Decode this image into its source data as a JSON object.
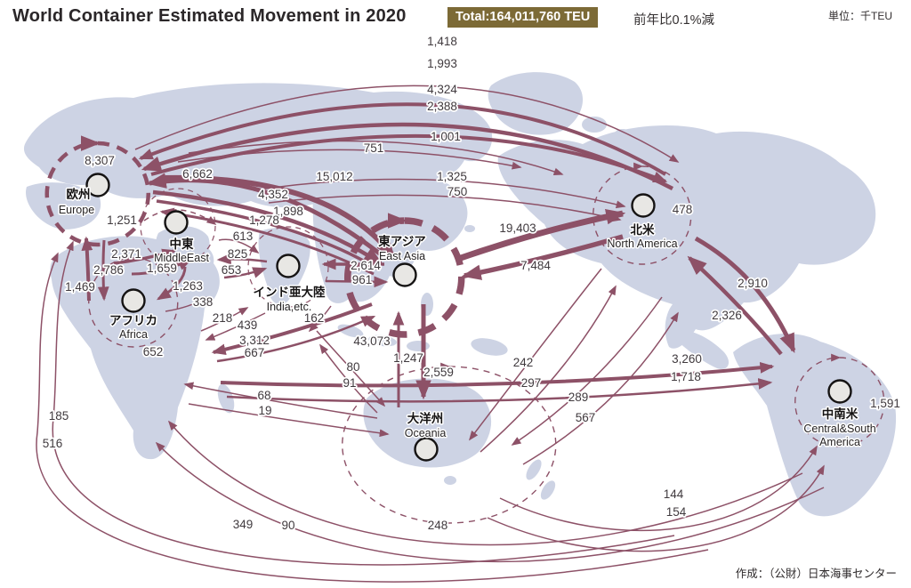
{
  "header": {
    "title": "World Container Estimated Movement in 2020",
    "total_badge": "Total:164,011,760 TEU",
    "yoy_note": "前年比0.1%減",
    "unit_note": "単位：千TEU"
  },
  "footer": {
    "credit": "作成：（公財）日本海事センター"
  },
  "colors": {
    "arrow": "#8d5167",
    "land": "#cdd3e4",
    "badge_bg": "#7c6a36",
    "node_fill": "#e8e7e4",
    "node_border": "#151313",
    "label_text": "#403a3e"
  },
  "regions": [
    {
      "id": "europe",
      "ja": "欧州",
      "en": "Europe"
    },
    {
      "id": "middleeast",
      "ja": "中東",
      "en": "MiddleEast"
    },
    {
      "id": "africa",
      "ja": "アフリカ",
      "en": "Africa"
    },
    {
      "id": "india",
      "ja": "インド亜大陸",
      "en": "India,etc."
    },
    {
      "id": "eastasia",
      "ja": "東アジア",
      "en": "East Asia"
    },
    {
      "id": "oceania",
      "ja": "大洋州",
      "en": "Oceania"
    },
    {
      "id": "northamerica",
      "ja": "北米",
      "en": "North America"
    },
    {
      "id": "centralsouthamerica",
      "ja": "中南米",
      "en": "Central&South",
      "en2": "America"
    }
  ],
  "flows": [
    {
      "id": "f01",
      "value": "1,418"
    },
    {
      "id": "f02",
      "value": "1,993"
    },
    {
      "id": "f03",
      "value": "4,324"
    },
    {
      "id": "f04",
      "value": "2,388"
    },
    {
      "id": "f05",
      "value": "1,001"
    },
    {
      "id": "f06",
      "value": "751"
    },
    {
      "id": "f07",
      "value": "8,307"
    },
    {
      "id": "f08",
      "value": "6,662"
    },
    {
      "id": "f09",
      "value": "15,012"
    },
    {
      "id": "f10",
      "value": "1,325"
    },
    {
      "id": "f11",
      "value": "750"
    },
    {
      "id": "f12",
      "value": "4,352"
    },
    {
      "id": "f13",
      "value": "1,898"
    },
    {
      "id": "f14",
      "value": "1,278"
    },
    {
      "id": "f15",
      "value": "1,251"
    },
    {
      "id": "f16",
      "value": "613"
    },
    {
      "id": "f17",
      "value": "19,403"
    },
    {
      "id": "f18",
      "value": "478"
    },
    {
      "id": "f19",
      "value": "2,371"
    },
    {
      "id": "f20",
      "value": "825"
    },
    {
      "id": "f21",
      "value": "1,659"
    },
    {
      "id": "f22",
      "value": "653"
    },
    {
      "id": "f23",
      "value": "2,786"
    },
    {
      "id": "f24",
      "value": "2,614"
    },
    {
      "id": "f25",
      "value": "961"
    },
    {
      "id": "f26",
      "value": "7,484"
    },
    {
      "id": "f27",
      "value": "1,469"
    },
    {
      "id": "f28",
      "value": "1,263"
    },
    {
      "id": "f29",
      "value": "338"
    },
    {
      "id": "f30",
      "value": "2,910"
    },
    {
      "id": "f31",
      "value": "218"
    },
    {
      "id": "f32",
      "value": "162"
    },
    {
      "id": "f33",
      "value": "2,326"
    },
    {
      "id": "f34",
      "value": "439"
    },
    {
      "id": "f35",
      "value": "3,312"
    },
    {
      "id": "f36",
      "value": "667"
    },
    {
      "id": "f37",
      "value": "43,073"
    },
    {
      "id": "f38",
      "value": "652"
    },
    {
      "id": "f39",
      "value": "3,260"
    },
    {
      "id": "f40",
      "value": "1,718"
    },
    {
      "id": "f41",
      "value": "80"
    },
    {
      "id": "f42",
      "value": "91"
    },
    {
      "id": "f43",
      "value": "1,247"
    },
    {
      "id": "f44",
      "value": "2,559"
    },
    {
      "id": "f45",
      "value": "242"
    },
    {
      "id": "f46",
      "value": "297"
    },
    {
      "id": "f47",
      "value": "289"
    },
    {
      "id": "f48",
      "value": "567"
    },
    {
      "id": "f49",
      "value": "68"
    },
    {
      "id": "f50",
      "value": "19"
    },
    {
      "id": "f51",
      "value": "185"
    },
    {
      "id": "f52",
      "value": "516"
    },
    {
      "id": "f53",
      "value": "1,591"
    },
    {
      "id": "f54",
      "value": "144"
    },
    {
      "id": "f55",
      "value": "154"
    },
    {
      "id": "f56",
      "value": "349"
    },
    {
      "id": "f57",
      "value": "90"
    },
    {
      "id": "f58",
      "value": "248"
    }
  ]
}
